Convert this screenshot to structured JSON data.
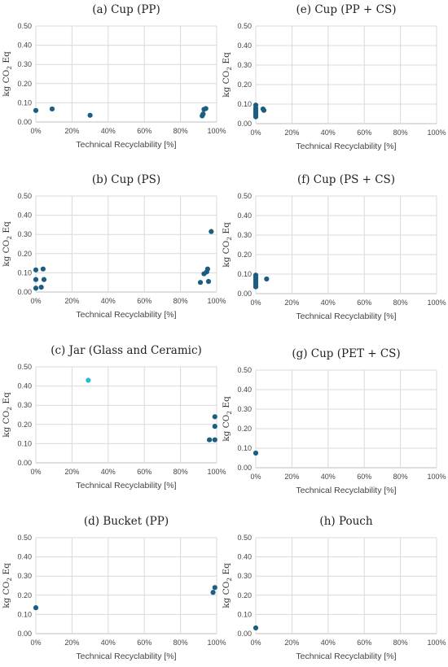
{
  "figure": {
    "common": {
      "xlabel": "Technical Recyclability [%]",
      "ylabel_prefix": "kg CO",
      "ylabel_sub": "2",
      "ylabel_suffix": " Eq",
      "x_ticks": [
        "0%",
        "20%",
        "40%",
        "60%",
        "80%",
        "100%"
      ],
      "y_ticks": [
        "0.00",
        "0.10",
        "0.20",
        "0.30",
        "0.40",
        "0.50"
      ]
    },
    "colors": {
      "point": "#1b5e82",
      "highlight": "#2fb8d6",
      "grid": "#d9d9d9"
    }
  },
  "chart_data": [
    {
      "id": "a",
      "type": "scatter",
      "title": "(a) Cup (PP)",
      "xlabel": "Technical Recyclability [%]",
      "ylabel": "kg CO2 Eq",
      "xlim": [
        0,
        100
      ],
      "ylim": [
        0,
        0.5
      ],
      "grid": true,
      "points": [
        {
          "x": 0,
          "y": 0.06
        },
        {
          "x": 9,
          "y": 0.068
        },
        {
          "x": 30,
          "y": 0.035
        },
        {
          "x": 92,
          "y": 0.032
        },
        {
          "x": 92.5,
          "y": 0.042
        },
        {
          "x": 93,
          "y": 0.066
        },
        {
          "x": 94,
          "y": 0.07
        }
      ]
    },
    {
      "id": "e",
      "type": "scatter",
      "title": "(e) Cup (PP + CS)",
      "xlabel": "Technical Recyclability [%]",
      "ylabel": "kg CO2 Eq",
      "xlim": [
        0,
        100
      ],
      "ylim": [
        0,
        0.5
      ],
      "grid": true,
      "points": [
        {
          "x": 0,
          "y": 0.095
        },
        {
          "x": 0,
          "y": 0.08
        },
        {
          "x": 0,
          "y": 0.07
        },
        {
          "x": 0,
          "y": 0.06
        },
        {
          "x": 0,
          "y": 0.05
        },
        {
          "x": 0,
          "y": 0.04
        },
        {
          "x": 0,
          "y": 0.035
        },
        {
          "x": 4,
          "y": 0.075
        },
        {
          "x": 4.5,
          "y": 0.068
        }
      ]
    },
    {
      "id": "b",
      "type": "scatter",
      "title": "(b) Cup (PS)",
      "xlabel": "Technical Recyclability [%]",
      "ylabel": "kg CO2 Eq",
      "xlim": [
        0,
        100
      ],
      "ylim": [
        0,
        0.5
      ],
      "grid": true,
      "points": [
        {
          "x": 0,
          "y": 0.115
        },
        {
          "x": 0,
          "y": 0.065
        },
        {
          "x": 0,
          "y": 0.02
        },
        {
          "x": 3,
          "y": 0.025
        },
        {
          "x": 4,
          "y": 0.12
        },
        {
          "x": 4.5,
          "y": 0.065
        },
        {
          "x": 91,
          "y": 0.05
        },
        {
          "x": 93,
          "y": 0.095
        },
        {
          "x": 94.5,
          "y": 0.105
        },
        {
          "x": 95,
          "y": 0.12
        },
        {
          "x": 95.5,
          "y": 0.055
        },
        {
          "x": 97,
          "y": 0.315
        }
      ]
    },
    {
      "id": "f",
      "type": "scatter",
      "title": "(f) Cup (PS + CS)",
      "xlabel": "Technical Recyclability [%]",
      "ylabel": "kg CO2 Eq",
      "xlim": [
        0,
        100
      ],
      "ylim": [
        0,
        0.5
      ],
      "grid": true,
      "points": [
        {
          "x": 0,
          "y": 0.095
        },
        {
          "x": 0,
          "y": 0.085
        },
        {
          "x": 0,
          "y": 0.075
        },
        {
          "x": 0,
          "y": 0.065
        },
        {
          "x": 0,
          "y": 0.055
        },
        {
          "x": 0,
          "y": 0.045
        },
        {
          "x": 0,
          "y": 0.035
        },
        {
          "x": 6,
          "y": 0.075
        }
      ]
    },
    {
      "id": "c",
      "type": "scatter",
      "title": "(c) Jar (Glass and Ceramic)",
      "xlabel": "Technical Recyclability [%]",
      "ylabel": "kg CO2 Eq",
      "xlim": [
        0,
        100
      ],
      "ylim": [
        0,
        0.5
      ],
      "grid": true,
      "points": [
        {
          "x": 29,
          "y": 0.43,
          "highlight": true
        },
        {
          "x": 96,
          "y": 0.12
        },
        {
          "x": 99,
          "y": 0.12
        },
        {
          "x": 99,
          "y": 0.19
        },
        {
          "x": 99,
          "y": 0.24
        }
      ]
    },
    {
      "id": "g",
      "type": "scatter",
      "title": "(g) Cup (PET + CS)",
      "xlabel": "Technical Recyclability [%]",
      "ylabel": "kg CO2 Eq",
      "xlim": [
        0,
        100
      ],
      "ylim": [
        0,
        0.5
      ],
      "grid": true,
      "points": [
        {
          "x": 0,
          "y": 0.075
        }
      ]
    },
    {
      "id": "d",
      "type": "scatter",
      "title": "(d) Bucket (PP)",
      "xlabel": "Technical Recyclability [%]",
      "ylabel": "kg CO2 Eq",
      "xlim": [
        0,
        100
      ],
      "ylim": [
        0,
        0.5
      ],
      "grid": true,
      "points": [
        {
          "x": 0,
          "y": 0.135
        },
        {
          "x": 98,
          "y": 0.215
        },
        {
          "x": 99,
          "y": 0.24
        }
      ]
    },
    {
      "id": "h",
      "type": "scatter",
      "title": "(h) Pouch",
      "xlabel": "Technical Recyclability [%]",
      "ylabel": "kg CO2 Eq",
      "xlim": [
        0,
        100
      ],
      "ylim": [
        0,
        0.5
      ],
      "grid": true,
      "points": [
        {
          "x": 0,
          "y": 0.03
        }
      ]
    }
  ]
}
